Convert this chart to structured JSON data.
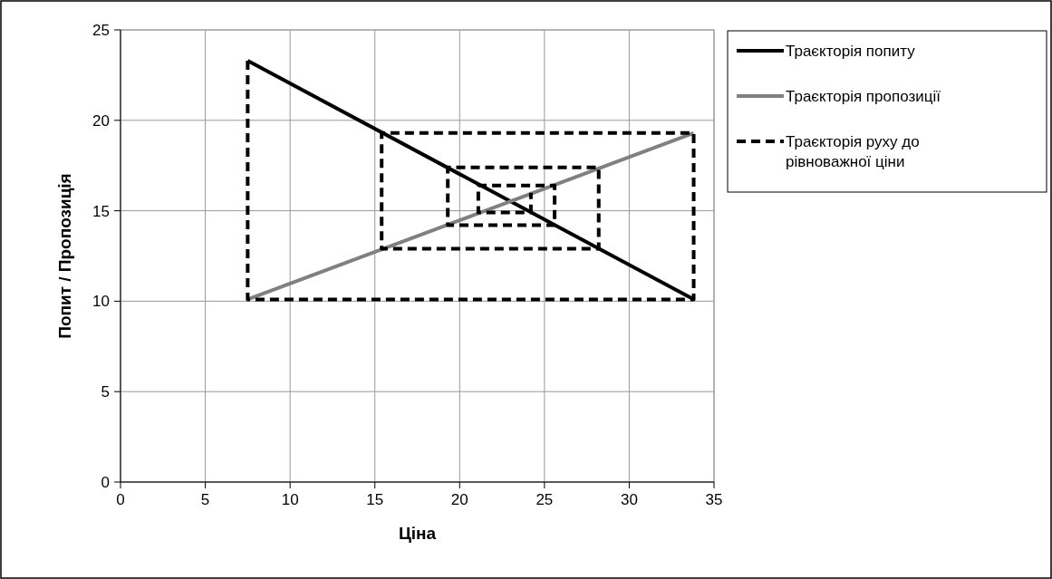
{
  "chart_data": {
    "type": "line",
    "xlabel": "Ціна",
    "ylabel": "Попит / Пропозиція",
    "xlim": [
      0,
      35
    ],
    "ylim": [
      0,
      25
    ],
    "xticks": [
      0,
      5,
      10,
      15,
      20,
      25,
      30,
      35
    ],
    "yticks": [
      0,
      5,
      10,
      15,
      20,
      25
    ],
    "grid": true,
    "legend": "right",
    "line_style": "solid",
    "marker": "none",
    "series": [
      {
        "name": "Траєкторія попиту",
        "color": "#000000",
        "x": [
          7.5,
          33.8
        ],
        "values": [
          23.3,
          10.1
        ]
      },
      {
        "name": "Траєкторія пропозиції",
        "color": "#808080",
        "x": [
          7.5,
          33.8
        ],
        "values": [
          10.1,
          19.3
        ]
      },
      {
        "name": "Траєкторія руху до рівноважної ціни",
        "color": "#000000",
        "line_style": "dashed",
        "x": [
          7.5,
          7.5,
          33.8,
          33.8,
          15.4,
          15.4,
          28.2,
          28.2,
          19.3,
          19.3,
          25.6,
          25.6,
          21.1,
          21.1,
          24.2,
          24.2
        ],
        "values": [
          23.3,
          10.1,
          10.1,
          19.3,
          19.3,
          12.9,
          12.9,
          17.4,
          17.4,
          14.2,
          14.2,
          16.4,
          16.4,
          14.9,
          14.9,
          16.0
        ]
      }
    ]
  }
}
